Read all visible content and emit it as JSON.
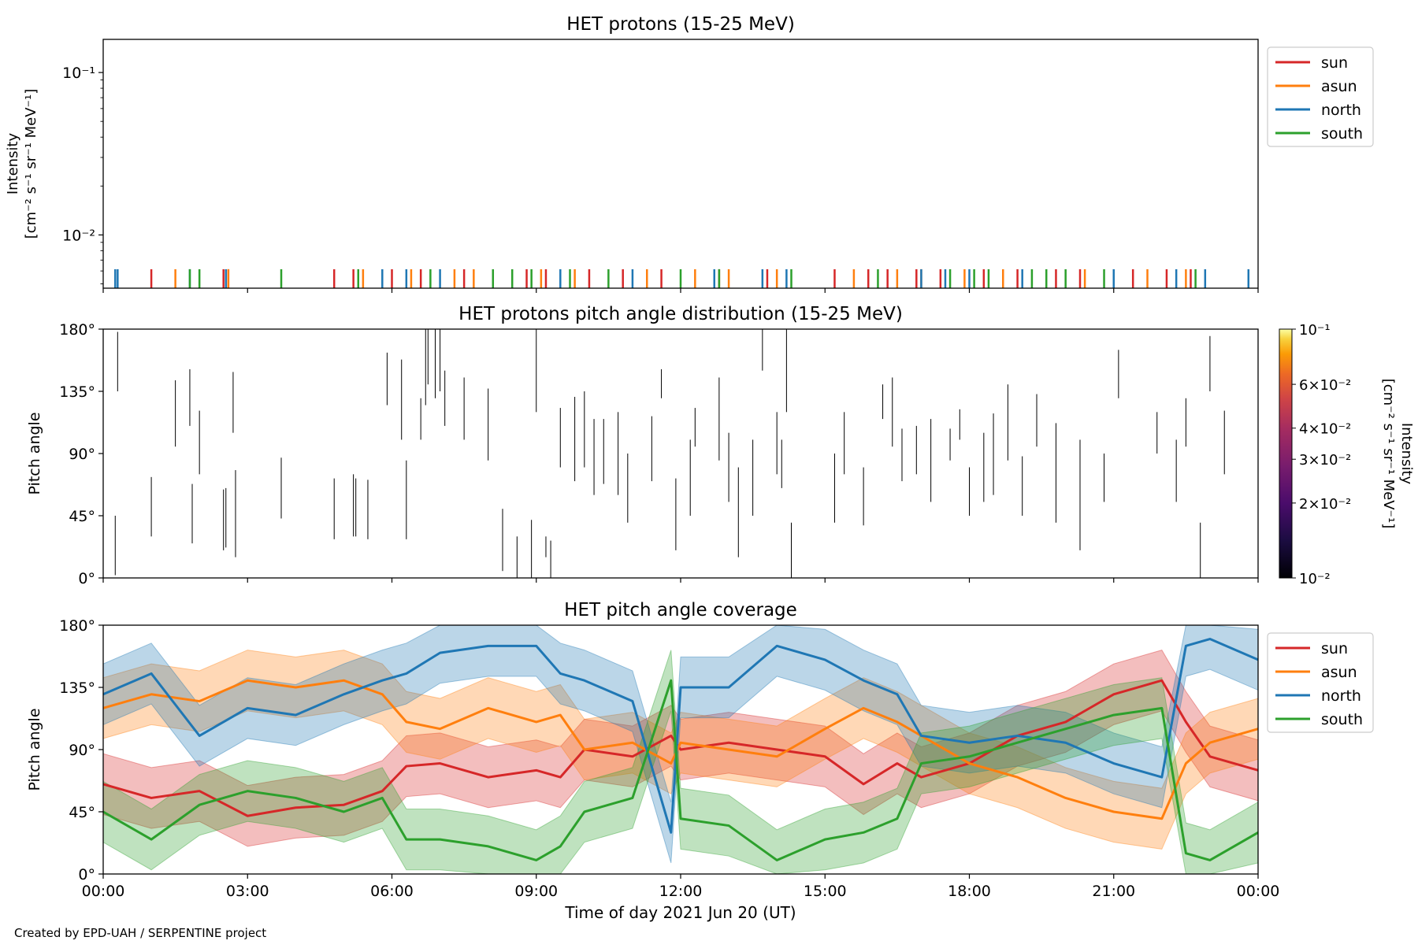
{
  "figure": {
    "footer": "Created by EPD-UAH / SERPENTINE project",
    "xlabel": "Time of day 2021 Jun 20 (UT)",
    "x_ticks": [
      "00:00",
      "03:00",
      "06:00",
      "09:00",
      "12:00",
      "15:00",
      "18:00",
      "21:00",
      "00:00"
    ]
  },
  "colors": {
    "sun": "#d62728",
    "asun": "#ff7f0e",
    "north": "#1f77b4",
    "south": "#2ca02c"
  },
  "chart_data": [
    {
      "type": "line",
      "title": "HET protons (15-25 MeV)",
      "ylabel": [
        "Intensity",
        "[cm⁻² s⁻¹ sr⁻¹ MeV⁻¹]"
      ],
      "yscale": "log",
      "ylim": [
        0.0047,
        0.16
      ],
      "y_ticks": [
        "10⁻¹",
        "10⁻²"
      ],
      "xlim_hours": [
        0,
        24
      ],
      "legend_position": "outside-right",
      "series": [
        {
          "name": "sun",
          "color": "#d62728",
          "x_hours": [
            1.0,
            2.5,
            2.6,
            4.8,
            5.2,
            6.0,
            6.6,
            7.5,
            8.8,
            9.2,
            10.1,
            10.8,
            11.6,
            12.8,
            13.8,
            15.2,
            15.9,
            16.3,
            16.9,
            17.4,
            18.3,
            19.0,
            19.8,
            20.3,
            21.4,
            22.1,
            22.6
          ],
          "y": [
            0.0055,
            0.0055,
            0.0055,
            0.0055,
            0.0055,
            0.0055,
            0.0055,
            0.0055,
            0.0055,
            0.0055,
            0.0055,
            0.0055,
            0.0055,
            0.0055,
            0.0055,
            0.0055,
            0.0055,
            0.0055,
            0.0055,
            0.0055,
            0.0055,
            0.0055,
            0.0055,
            0.0055,
            0.0055,
            0.0055,
            0.0055
          ]
        },
        {
          "name": "asun",
          "color": "#ff7f0e",
          "x_hours": [
            1.5,
            2.6,
            5.4,
            6.4,
            7.3,
            7.7,
            9.1,
            9.8,
            11.3,
            12.3,
            13.0,
            14.0,
            15.6,
            16.5,
            17.0,
            17.9,
            18.7,
            20.4,
            21.7,
            22.5
          ],
          "y": [
            0.0055,
            0.0055,
            0.0055,
            0.0055,
            0.0055,
            0.0055,
            0.0055,
            0.0055,
            0.0055,
            0.0055,
            0.0055,
            0.0055,
            0.0055,
            0.0055,
            0.0055,
            0.0055,
            0.0055,
            0.0055,
            0.0055,
            0.0055
          ]
        },
        {
          "name": "north",
          "color": "#1f77b4",
          "x_hours": [
            0.25,
            0.3,
            1.8,
            2.55,
            5.8,
            6.3,
            7.0,
            9.5,
            11.0,
            12.7,
            13.7,
            14.2,
            17.0,
            17.5,
            18.0,
            19.1,
            21.0,
            22.3,
            22.9,
            23.8
          ],
          "y": [
            0.0055,
            0.0055,
            0.0055,
            0.0055,
            0.0055,
            0.0055,
            0.0055,
            0.0055,
            0.0055,
            0.0055,
            0.0055,
            0.0055,
            0.0055,
            0.0055,
            0.0055,
            0.0055,
            0.0055,
            0.0055,
            0.0055,
            0.0055
          ]
        },
        {
          "name": "south",
          "color": "#2ca02c",
          "x_hours": [
            1.8,
            2.0,
            3.7,
            5.3,
            6.8,
            8.1,
            8.5,
            8.9,
            9.7,
            10.5,
            12.0,
            12.8,
            14.3,
            16.1,
            17.6,
            18.1,
            18.4,
            19.3,
            19.6,
            20.0,
            20.8,
            22.7
          ],
          "y": [
            0.0055,
            0.0055,
            0.0055,
            0.0055,
            0.0055,
            0.0055,
            0.0055,
            0.0055,
            0.0055,
            0.0055,
            0.0055,
            0.0055,
            0.0055,
            0.0055,
            0.0055,
            0.0055,
            0.0055,
            0.0055,
            0.0055,
            0.0055,
            0.0055,
            0.0055
          ]
        }
      ]
    },
    {
      "type": "heatmap",
      "title": "HET protons pitch angle distribution (15-25 MeV)",
      "ylabel": "Pitch angle",
      "ylim": [
        0,
        180
      ],
      "y_ticks": [
        "0°",
        "45°",
        "90°",
        "135°",
        "180°"
      ],
      "xlim_hours": [
        0,
        24
      ],
      "colorbar": {
        "label": [
          "Intensity",
          "[cm⁻² s⁻¹ sr⁻¹ MeV⁻¹]"
        ],
        "scale": "log",
        "range": [
          0.01,
          0.1
        ],
        "colormap": "inferno",
        "ticks": [
          {
            "value": 0.1,
            "label": "10⁻¹"
          },
          {
            "value": 0.06,
            "label": "6×10⁻²"
          },
          {
            "value": 0.04,
            "label": "4×10⁻²"
          },
          {
            "value": 0.03,
            "label": "3×10⁻²"
          },
          {
            "value": 0.02,
            "label": "2×10⁻²"
          },
          {
            "value": 0.01,
            "label": "10⁻²"
          }
        ]
      },
      "segments_hours_deg": [
        [
          0.25,
          2,
          45
        ],
        [
          0.3,
          135,
          178
        ],
        [
          1.0,
          30,
          73
        ],
        [
          1.5,
          95,
          143
        ],
        [
          1.8,
          110,
          151
        ],
        [
          1.85,
          25,
          68
        ],
        [
          2.0,
          75,
          121
        ],
        [
          2.5,
          20,
          64
        ],
        [
          2.55,
          22,
          65
        ],
        [
          2.75,
          15,
          78
        ],
        [
          2.7,
          105,
          149
        ],
        [
          3.7,
          43,
          87
        ],
        [
          4.8,
          28,
          72
        ],
        [
          5.2,
          30,
          75
        ],
        [
          5.25,
          30,
          72
        ],
        [
          5.5,
          28,
          71
        ],
        [
          5.9,
          125,
          163
        ],
        [
          6.2,
          100,
          158
        ],
        [
          6.3,
          28,
          85
        ],
        [
          6.6,
          100,
          130
        ],
        [
          6.7,
          125,
          180
        ],
        [
          6.75,
          140,
          180
        ],
        [
          6.9,
          130,
          180
        ],
        [
          7.0,
          135,
          180
        ],
        [
          7.1,
          110,
          150
        ],
        [
          7.5,
          100,
          145
        ],
        [
          8.0,
          85,
          137
        ],
        [
          8.3,
          5,
          50
        ],
        [
          8.6,
          0,
          30
        ],
        [
          8.9,
          0,
          42
        ],
        [
          9.0,
          120,
          180
        ],
        [
          9.2,
          15,
          30
        ],
        [
          9.3,
          0,
          27
        ],
        [
          9.5,
          80,
          123
        ],
        [
          9.8,
          70,
          131
        ],
        [
          10.0,
          80,
          135
        ],
        [
          10.2,
          60,
          115
        ],
        [
          10.4,
          68,
          115
        ],
        [
          10.7,
          60,
          120
        ],
        [
          10.9,
          40,
          90
        ],
        [
          11.4,
          70,
          117
        ],
        [
          11.6,
          130,
          151
        ],
        [
          11.9,
          20,
          72
        ],
        [
          12.2,
          45,
          100
        ],
        [
          12.3,
          95,
          123
        ],
        [
          12.8,
          85,
          145
        ],
        [
          13.0,
          55,
          105
        ],
        [
          13.2,
          15,
          80
        ],
        [
          13.5,
          45,
          100
        ],
        [
          13.7,
          150,
          180
        ],
        [
          14.0,
          75,
          120
        ],
        [
          14.1,
          65,
          100
        ],
        [
          14.2,
          120,
          180
        ],
        [
          14.3,
          0,
          40
        ],
        [
          15.2,
          40,
          90
        ],
        [
          15.4,
          75,
          120
        ],
        [
          15.8,
          38,
          80
        ],
        [
          16.2,
          115,
          140
        ],
        [
          16.4,
          95,
          145
        ],
        [
          16.6,
          70,
          108
        ],
        [
          16.9,
          75,
          110
        ],
        [
          17.2,
          55,
          115
        ],
        [
          17.6,
          85,
          108
        ],
        [
          17.8,
          100,
          122
        ],
        [
          18.0,
          45,
          80
        ],
        [
          18.3,
          55,
          105
        ],
        [
          18.5,
          60,
          119
        ],
        [
          18.8,
          85,
          140
        ],
        [
          19.1,
          45,
          88
        ],
        [
          19.4,
          95,
          133
        ],
        [
          19.8,
          40,
          112
        ],
        [
          20.3,
          20,
          100
        ],
        [
          20.8,
          55,
          90
        ],
        [
          21.1,
          130,
          165
        ],
        [
          21.9,
          90,
          120
        ],
        [
          22.3,
          55,
          100
        ],
        [
          22.5,
          95,
          130
        ],
        [
          22.8,
          0,
          40
        ],
        [
          23.0,
          135,
          175
        ],
        [
          23.3,
          75,
          121
        ]
      ]
    },
    {
      "type": "area",
      "title": "HET pitch angle coverage",
      "ylabel": "Pitch angle",
      "ylim": [
        0,
        180
      ],
      "y_ticks": [
        "0°",
        "45°",
        "90°",
        "135°",
        "180°"
      ],
      "xlim_hours": [
        0,
        24
      ],
      "legend_position": "outside-right",
      "band_halfwidth_deg": 22,
      "series": [
        {
          "name": "sun",
          "color": "#d62728",
          "x_hours": [
            0,
            1,
            2,
            3,
            4,
            5,
            5.8,
            6.3,
            7,
            8,
            9,
            9.5,
            10,
            11,
            11.8,
            12,
            13,
            14,
            15,
            15.8,
            16.5,
            17,
            18,
            19,
            20,
            21,
            22,
            22.5,
            23,
            24
          ],
          "y": [
            65,
            55,
            60,
            42,
            48,
            50,
            60,
            78,
            80,
            70,
            75,
            70,
            90,
            85,
            100,
            90,
            95,
            90,
            85,
            65,
            80,
            70,
            80,
            100,
            110,
            130,
            140,
            110,
            85,
            75
          ]
        },
        {
          "name": "asun",
          "color": "#ff7f0e",
          "x_hours": [
            0,
            1,
            2,
            3,
            4,
            5,
            5.8,
            6.3,
            7,
            8,
            9,
            9.5,
            10,
            11,
            11.8,
            12,
            13,
            14,
            15,
            15.8,
            16.5,
            17,
            18,
            19,
            20,
            21,
            22,
            22.5,
            23,
            24
          ],
          "y": [
            120,
            130,
            125,
            140,
            135,
            140,
            130,
            110,
            105,
            120,
            110,
            115,
            90,
            95,
            80,
            95,
            90,
            85,
            105,
            120,
            110,
            100,
            80,
            70,
            55,
            45,
            40,
            80,
            95,
            105
          ]
        },
        {
          "name": "north",
          "color": "#1f77b4",
          "x_hours": [
            0,
            1,
            2,
            3,
            4,
            5,
            5.8,
            6.3,
            7,
            8,
            9,
            9.5,
            10,
            11,
            11.8,
            12,
            13,
            14,
            15,
            15.8,
            16.5,
            17,
            18,
            19,
            20,
            21,
            22,
            22.5,
            23,
            24
          ],
          "y": [
            130,
            145,
            100,
            120,
            115,
            130,
            140,
            145,
            160,
            165,
            165,
            145,
            140,
            125,
            30,
            135,
            135,
            165,
            155,
            140,
            130,
            100,
            95,
            100,
            95,
            80,
            70,
            165,
            170,
            155
          ]
        },
        {
          "name": "south",
          "color": "#2ca02c",
          "x_hours": [
            0,
            1,
            2,
            3,
            4,
            5,
            5.8,
            6.3,
            7,
            8,
            9,
            9.5,
            10,
            11,
            11.8,
            12,
            13,
            14,
            15,
            15.8,
            16.5,
            17,
            18,
            19,
            20,
            21,
            22,
            22.5,
            23,
            24
          ],
          "y": [
            45,
            25,
            50,
            60,
            55,
            45,
            55,
            25,
            25,
            20,
            10,
            20,
            45,
            55,
            140,
            40,
            35,
            10,
            25,
            30,
            40,
            80,
            85,
            95,
            105,
            115,
            120,
            15,
            10,
            30
          ]
        }
      ]
    }
  ]
}
